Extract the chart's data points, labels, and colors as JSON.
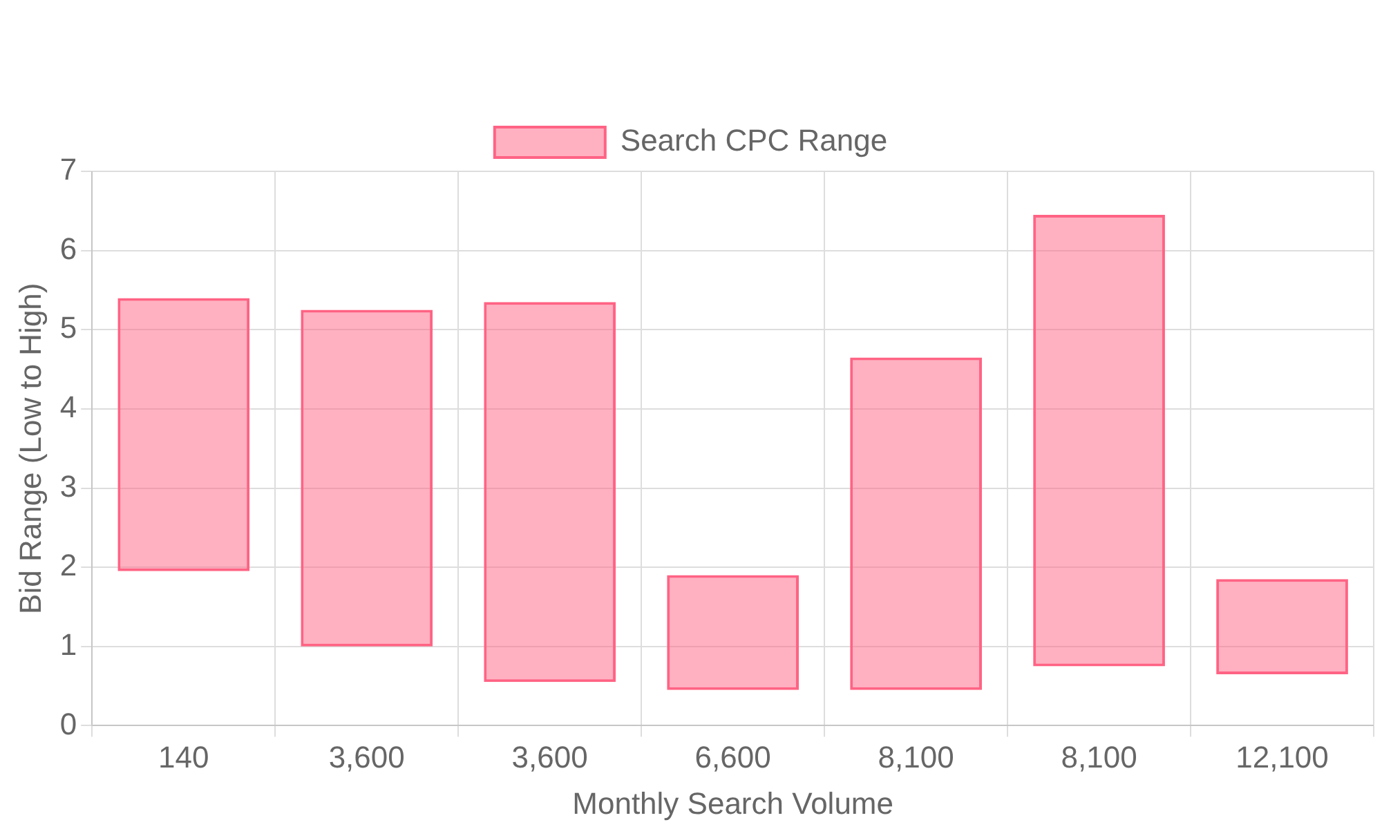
{
  "chart_data": {
    "type": "bar",
    "xlabel": "Monthly Search Volume",
    "ylabel": "Bid Range (Low to High)",
    "categories": [
      "140",
      "3,600",
      "3,600",
      "6,600",
      "8,100",
      "8,100",
      "12,100"
    ],
    "series": [
      {
        "name": "Search CPC Range",
        "color": "#ff6384",
        "values": [
          3.45,
          4.25,
          4.8,
          1.45,
          4.2,
          5.7,
          1.2
        ],
        "base": [
          1.95,
          1.0,
          0.55,
          0.45,
          0.45,
          0.75,
          0.65
        ]
      }
    ],
    "ylim": [
      0,
      7
    ],
    "yticks": [
      0,
      1,
      2,
      3,
      4,
      5,
      6,
      7
    ],
    "grid": true,
    "legend": "top"
  }
}
